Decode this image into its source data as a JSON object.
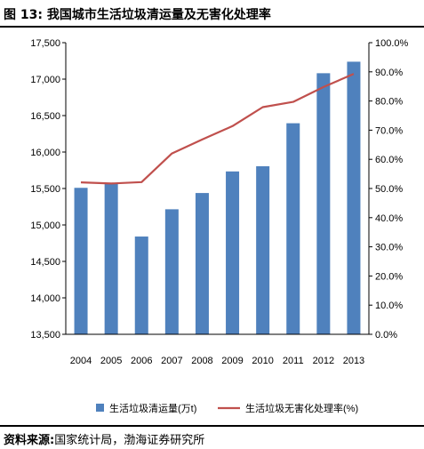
{
  "title": "图 13:  我国城市生活垃圾清运量及无害化处理率",
  "source": {
    "label": "资料来源:",
    "text": "国家统计局，渤海证券研究所"
  },
  "chart_data": {
    "type": "bar",
    "categories": [
      "2004",
      "2005",
      "2006",
      "2007",
      "2008",
      "2009",
      "2010",
      "2011",
      "2012",
      "2013"
    ],
    "series": [
      {
        "name": "生活垃圾清运量(万t)",
        "type": "bar",
        "axis": "left",
        "color": "#4f81bd",
        "values": [
          15509,
          15577,
          14841,
          15215,
          15438,
          15734,
          15805,
          16395,
          17081,
          17239
        ]
      },
      {
        "name": "生活垃圾无害化处理率(%)",
        "type": "line",
        "axis": "right",
        "color": "#c0504d",
        "values": [
          52.1,
          51.7,
          52.2,
          62.0,
          66.8,
          71.4,
          77.9,
          79.7,
          84.8,
          89.3
        ]
      }
    ],
    "y_left": {
      "min": 13500,
      "max": 17500,
      "step": 500,
      "ticks": [
        "13,500",
        "14,000",
        "14,500",
        "15,000",
        "15,500",
        "16,000",
        "16,500",
        "17,000",
        "17,500"
      ]
    },
    "y_right": {
      "min": 0,
      "max": 100,
      "step": 10,
      "ticks": [
        "0.0%",
        "10.0%",
        "20.0%",
        "30.0%",
        "40.0%",
        "50.0%",
        "60.0%",
        "70.0%",
        "80.0%",
        "90.0%",
        "100.0%"
      ]
    },
    "grid": false,
    "legend": "bottom"
  }
}
